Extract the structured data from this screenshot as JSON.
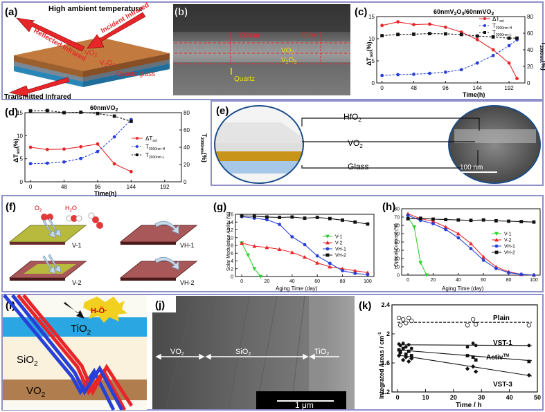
{
  "panels": {
    "a": {
      "label": "(a)",
      "top_text": "High ambient temperature",
      "reflected": "Reflected Infrared",
      "incident": "Incident Infrared",
      "layer1": "VO",
      "layer1_sub": "2",
      "layer2": "V",
      "layer2_sub1": "2",
      "layer2_mid": "O",
      "layer2_sub2": "3",
      "substrate": "Quartz glass",
      "transmitted": "Transmitted Infrared"
    },
    "b": {
      "label": "(b)",
      "dim1": "130nm",
      "dim2": "60nm",
      "layer1": "VO",
      "layer1_sub": "2",
      "layer2": "V",
      "layer2_sub1": "2",
      "layer2_mid": "O",
      "layer2_sub2": "3",
      "substrate": "Quartz"
    },
    "c": {
      "label": "(c)",
      "title": "60nmV",
      "title_sub1": "2",
      "title_mid": "O",
      "title_sub2": "3",
      "title_tail": "/60nmVO",
      "title_sub3": "2",
      "xlabel": "Time(h)",
      "ylabel_left": "ΔT",
      "ylabel_left_sub": "sol",
      "ylabel_left_unit": "(%)",
      "ylabel_right": "T",
      "ylabel_right_sub": "2000nm",
      "ylabel_right_unit": "(%)",
      "legend": [
        "ΔT",
        "T",
        "T"
      ],
      "legend_sub": [
        "sol",
        "2000nm-H",
        "2000nm-L"
      ]
    },
    "d": {
      "label": "(d)",
      "title": "60nmVO",
      "title_sub": "2",
      "xlabel": "Time(h)",
      "ylabel_left": "ΔT",
      "ylabel_left_sub": "sol",
      "ylabel_left_unit": "(%)",
      "ylabel_right": "T",
      "ylabel_right_sub": "2000nm",
      "ylabel_right_unit": "(%)",
      "legend": [
        "ΔT",
        "T",
        "T"
      ],
      "legend_sub": [
        "sol",
        "2000nm-H",
        "2000nm-L"
      ]
    },
    "e": {
      "label": "(e)",
      "top": "HfO",
      "top_sub": "2",
      "mid": "VO",
      "mid_sub": "2",
      "bottom": "Glass",
      "scale": "100 nm"
    },
    "f": {
      "label": "(f)",
      "o2": "O",
      "o2_sub": "2",
      "h2o": "H",
      "h2o_sub": "2",
      "h2o_tail": "O",
      "samples": [
        "V-1",
        "VH-1",
        "V-2",
        "VH-2"
      ]
    },
    "g": {
      "label": "(g)",
      "xlabel": "Aging Time (day)",
      "ylabel": "Solar Modulation Ability (%)",
      "legend": [
        "V-1",
        "V-2",
        "VH-1",
        "VH-2"
      ]
    },
    "h": {
      "label": "(h)",
      "xlabel": "Aging Time (day)",
      "ylabel": "Optical Contrast (%)",
      "legend": [
        "V-1",
        "V-2",
        "VH-1",
        "VH-2"
      ]
    },
    "i": {
      "label": "(i)",
      "radical": "H-Ö·",
      "tio2": "TiO",
      "tio2_sub": "2",
      "sio2": "SiO",
      "sio2_sub": "2",
      "vo2": "VO",
      "vo2_sub": "2"
    },
    "j": {
      "label": "(j)",
      "vo2": "VO",
      "vo2_sub": "2",
      "sio2": "SiO",
      "sio2_sub": "2",
      "tio2": "TiO",
      "tio2_sub": "2",
      "scale": "1 μm"
    },
    "k": {
      "label": "(k)",
      "xlabel": "Time / h",
      "ylabel": "Integrated Areas / cm",
      "ylabel_sup": "-1",
      "series_labels": [
        "Plain",
        "VST-1",
        "Activ",
        "VST-3"
      ],
      "activ_sup": "TM"
    }
  },
  "colors": {
    "frame": "#8e8fc9",
    "red": "#e8262a",
    "blue": "#2741d8",
    "black": "#111111",
    "green": "#2fd12f",
    "orange_layer": "#c27a3e",
    "glass_blue": "#4fb5e6"
  },
  "chart_data": [
    {
      "id": "c",
      "type": "line",
      "x": [
        0,
        24,
        48,
        72,
        96,
        120,
        144,
        168,
        192,
        204
      ],
      "xticks": [
        0,
        48,
        96,
        144,
        192
      ],
      "xlim": [
        -8,
        216
      ],
      "ylim_left": [
        0,
        15
      ],
      "yticks_left": [
        0,
        5,
        10,
        15
      ],
      "ylim_right": [
        0,
        80
      ],
      "yticks_right": [
        0,
        20,
        40,
        60,
        80
      ],
      "series": [
        {
          "name": "ΔTsol",
          "axis": "left",
          "color": "#e8262a",
          "marker": "circle",
          "dash": false,
          "values": [
            13,
            13.8,
            13.2,
            13.3,
            12.6,
            11.5,
            9.8,
            7.5,
            4.5,
            1
          ]
        },
        {
          "name": "T2000nm-H",
          "axis": "right",
          "color": "#2741d8",
          "marker": "circle",
          "dash": true,
          "values": [
            9,
            10,
            10.5,
            11.5,
            13,
            16,
            24,
            33,
            45,
            52
          ]
        },
        {
          "name": "T2000nm-L",
          "axis": "right",
          "color": "#111111",
          "marker": "square",
          "dash": true,
          "values": [
            57,
            58.5,
            58.8,
            59.5,
            59.2,
            58.4,
            56.5,
            55.5,
            54,
            54
          ]
        }
      ]
    },
    {
      "id": "d",
      "type": "line",
      "x": [
        0,
        24,
        48,
        72,
        96,
        120,
        144
      ],
      "xticks": [
        0,
        48,
        96,
        144,
        192
      ],
      "xlim": [
        -8,
        216
      ],
      "ylim_left": [
        0,
        15
      ],
      "yticks_left": [
        0,
        5,
        10,
        15
      ],
      "ylim_right": [
        0,
        80
      ],
      "yticks_right": [
        0,
        20,
        40,
        60,
        80
      ],
      "series": [
        {
          "name": "ΔTsol",
          "axis": "left",
          "color": "#e8262a",
          "marker": "circle",
          "dash": false,
          "x": [
            0,
            24,
            48,
            72,
            96,
            120,
            144
          ],
          "values": [
            7.5,
            7,
            7.1,
            7.6,
            8.2,
            3.9,
            2.2
          ]
        },
        {
          "name": "T2000nm-H",
          "axis": "right",
          "color": "#2741d8",
          "marker": "circle",
          "dash": true,
          "x": [
            0,
            24,
            48,
            72,
            96,
            120,
            144
          ],
          "values": [
            21,
            21.5,
            23,
            27,
            35,
            52,
            72
          ]
        },
        {
          "name": "T2000nm-L",
          "axis": "right",
          "color": "#111111",
          "marker": "square",
          "dash": true,
          "x": [
            0,
            24,
            48,
            72,
            96,
            120,
            144
          ],
          "values": [
            82,
            82.5,
            80,
            80.5,
            79,
            76,
            70
          ]
        }
      ]
    },
    {
      "id": "g",
      "type": "line",
      "xlabel": "Aging Time (day)",
      "ylabel": "Solar Modulation Ability (%)",
      "xticks": [
        0,
        20,
        40,
        60,
        80,
        100
      ],
      "xlim": [
        -5,
        105
      ],
      "ylim": [
        0,
        16
      ],
      "yticks": [
        0,
        2,
        4,
        6,
        8,
        10,
        12,
        14,
        16
      ],
      "series": [
        {
          "name": "V-1",
          "color": "#2fd12f",
          "marker": "tri-down",
          "x": [
            0,
            5,
            10,
            15
          ],
          "values": [
            8.6,
            5.5,
            2,
            0
          ]
        },
        {
          "name": "V-2",
          "color": "#e8262a",
          "marker": "tri-up",
          "x": [
            0,
            10,
            20,
            30,
            40,
            50,
            60,
            70,
            80,
            90,
            100
          ],
          "values": [
            8.6,
            7.8,
            7.5,
            7,
            6.2,
            5,
            3.5,
            2.5,
            2,
            1.5,
            1
          ]
        },
        {
          "name": "VH-1",
          "color": "#2741d8",
          "marker": "circle",
          "x": [
            0,
            10,
            20,
            30,
            40,
            50,
            60,
            70,
            80,
            90,
            100
          ],
          "values": [
            15.4,
            15,
            14.6,
            13.4,
            10.2,
            8.2,
            5.3,
            3.4,
            1.5,
            0.8,
            0.5
          ]
        },
        {
          "name": "VH-2",
          "color": "#111111",
          "marker": "square",
          "x": [
            0,
            10,
            20,
            30,
            40,
            50,
            60,
            70,
            80,
            90,
            100
          ],
          "values": [
            15.6,
            15.5,
            15.3,
            15.2,
            15.3,
            15,
            15.2,
            14.9,
            14.5,
            14,
            13.5
          ]
        }
      ]
    },
    {
      "id": "h",
      "type": "line",
      "xlabel": "Aging Time (day)",
      "ylabel": "Optical Contrast (%)",
      "xticks": [
        0,
        20,
        40,
        60,
        80,
        100
      ],
      "xlim": [
        -5,
        105
      ],
      "ylim": [
        0,
        80
      ],
      "yticks": [
        0,
        10,
        20,
        30,
        40,
        50,
        60,
        70,
        80
      ],
      "series": [
        {
          "name": "V-1",
          "color": "#2fd12f",
          "marker": "tri-down",
          "x": [
            0,
            5,
            10,
            15
          ],
          "values": [
            70,
            58,
            15,
            0
          ]
        },
        {
          "name": "V-2",
          "color": "#e8262a",
          "marker": "tri-up",
          "x": [
            0,
            10,
            20,
            30,
            40,
            50,
            60,
            70,
            80,
            90,
            100
          ],
          "values": [
            74,
            68,
            65,
            58,
            50,
            38,
            22,
            10,
            4,
            1,
            0
          ]
        },
        {
          "name": "VH-1",
          "color": "#2741d8",
          "marker": "circle",
          "x": [
            0,
            10,
            20,
            30,
            40,
            50,
            60,
            70,
            80,
            90,
            100
          ],
          "values": [
            72,
            66,
            62,
            55,
            45,
            32,
            18,
            8,
            3,
            1,
            0
          ]
        },
        {
          "name": "VH-2",
          "color": "#111111",
          "marker": "square",
          "x": [
            0,
            10,
            20,
            30,
            40,
            50,
            60,
            70,
            80,
            90,
            100
          ],
          "values": [
            68,
            68.5,
            67.5,
            67,
            66.5,
            66,
            66.5,
            65.5,
            65,
            64.5,
            64
          ]
        }
      ]
    },
    {
      "id": "k",
      "type": "scatter",
      "xlabel": "Time / h",
      "ylabel": "Integrated Areas / cm-1",
      "xticks": [
        0,
        10,
        20,
        30,
        40,
        50
      ],
      "xlim": [
        -2,
        50
      ],
      "ylim": [
        1.2,
        2.4
      ],
      "yticks": [
        1.2,
        1.6,
        2.0,
        2.4
      ],
      "series": [
        {
          "name": "Plain",
          "marker": "open-circle",
          "x": [
            0.5,
            1,
            2,
            3,
            4,
            5,
            25,
            27,
            28,
            47
          ],
          "values": [
            2.22,
            2.12,
            2.2,
            2.15,
            2.22,
            2.18,
            2.12,
            2.2,
            2.13,
            2.12
          ],
          "fit": [
            [
              0,
              2.16
            ],
            [
              48,
              2.16
            ]
          ]
        },
        {
          "name": "VST-1",
          "marker": "filled-circle",
          "x": [
            0.5,
            1,
            2,
            3,
            4,
            5,
            25,
            27,
            28,
            47
          ],
          "values": [
            1.86,
            1.84,
            1.87,
            1.82,
            1.85,
            1.8,
            1.82,
            1.87,
            1.84,
            1.84
          ],
          "fit": [
            [
              0,
              1.85
            ],
            [
              48,
              1.84
            ]
          ]
        },
        {
          "name": "Activ",
          "marker": "filled-square",
          "x": [
            0.5,
            1,
            2,
            3,
            4,
            5,
            25,
            27,
            28,
            47
          ],
          "values": [
            1.78,
            1.75,
            1.8,
            1.72,
            1.76,
            1.7,
            1.7,
            1.68,
            1.64,
            1.62
          ],
          "fit": [
            [
              0,
              1.78
            ],
            [
              48,
              1.63
            ]
          ]
        },
        {
          "name": "VST-3",
          "marker": "filled-diamond",
          "x": [
            0.5,
            1,
            2,
            3,
            4,
            5,
            25,
            27,
            28,
            47
          ],
          "values": [
            1.7,
            1.74,
            1.64,
            1.68,
            1.62,
            1.66,
            1.52,
            1.55,
            1.48,
            1.43
          ],
          "fit": [
            [
              0,
              1.71
            ],
            [
              48,
              1.42
            ]
          ]
        }
      ]
    }
  ]
}
